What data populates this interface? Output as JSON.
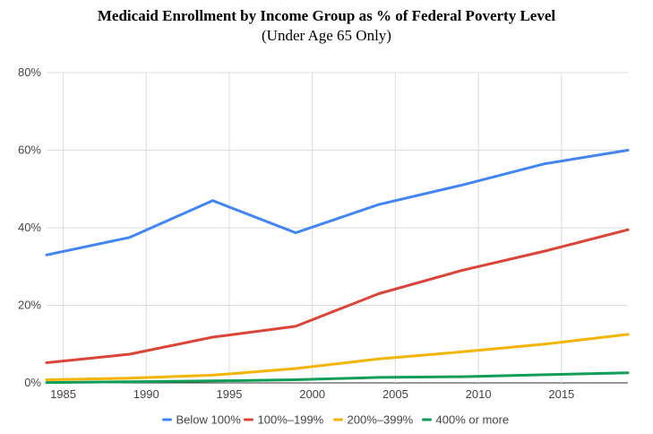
{
  "chart_data": {
    "type": "line",
    "title": "Medicaid Enrollment by Income Group as % of Federal Poverty Level",
    "subtitle": "(Under Age 65 Only)",
    "xlabel": "",
    "ylabel": "",
    "x": [
      1984,
      1989,
      1994,
      1999,
      2004,
      2009,
      2014,
      2019
    ],
    "xlim": [
      1984,
      2019
    ],
    "ylim": [
      0,
      80
    ],
    "x_ticks": [
      1985,
      1990,
      1995,
      2000,
      2005,
      2010,
      2015
    ],
    "y_ticks": [
      0,
      20,
      40,
      60,
      80
    ],
    "y_tick_labels": [
      "0%",
      "20%",
      "40%",
      "60%",
      "80%"
    ],
    "grid": true,
    "legend_position": "bottom",
    "series": [
      {
        "name": "Below 100%",
        "color": "#4285f4",
        "values": [
          33,
          37.5,
          47,
          38.7,
          46,
          51,
          56.5,
          60
        ]
      },
      {
        "name": "100%–199%",
        "color": "#db4437",
        "values": [
          5.2,
          7.4,
          11.8,
          14.6,
          23,
          29,
          34,
          39.5
        ]
      },
      {
        "name": "200%–399%",
        "color": "#f4b400",
        "values": [
          0.8,
          1.2,
          2,
          3.7,
          6.2,
          8,
          10,
          12.5
        ]
      },
      {
        "name": "400% or more",
        "color": "#0f9d58",
        "values": [
          0.1,
          0.3,
          0.5,
          0.8,
          1.4,
          1.6,
          2.1,
          2.6
        ]
      }
    ]
  }
}
